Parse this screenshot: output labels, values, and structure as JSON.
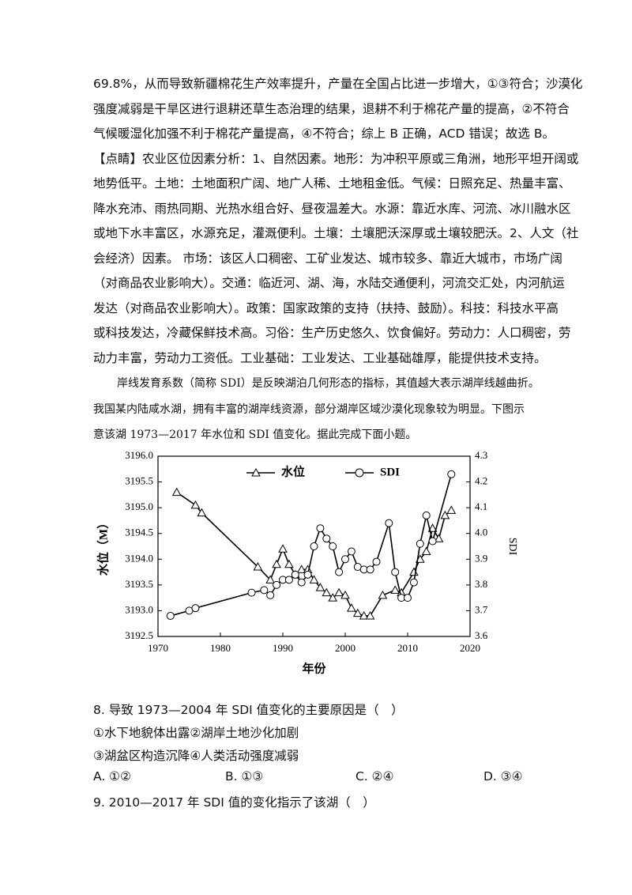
{
  "document": {
    "answer_lines": [
      "69.8%，从而导致新疆棉花生产效率提升，产量在全国占比进一步增大，①③符合；沙漠化",
      "强度减弱是干旱区进行退耕还草生态治理的结果，退耕不利于棉花产量的提高，②不符合",
      "气候暖湿化加强不利于棉花产量提高，④不符合；综上 B 正确，ACD 错误；故选 B。",
      "【点睛】农业区位因素分析：1、自然因素。地形：为冲积平原或三角洲，地形平坦开阔或",
      "地势低平。土地：土地面积广阔、地广人稀、土地租金低。气候：日照充足、热量丰富、",
      "降水充沛、雨热同期、光热水组合好、昼夜温差大。水源：靠近水库、河流、冰川融水区",
      "或地下水丰富区，水源充足，灌溉便利。土壤：土壤肥沃深厚或土壤较肥沃。2、人文（社",
      "会经济）因素。 市场：该区人口稠密、工矿业发达、城市较多、靠近大城市，市场广阔",
      "（对商品农业影响大）。交通：临近河、湖、海，水陆交通便利，河流交汇处，内河航运",
      "发达（对商品农业影响大）。政策：国家政策的支持（扶持、鼓励）。科技：科技水平高",
      "或科技发达，冷藏保鲜技术高。习俗：生产历史悠久、饮食偏好。劳动力：人口稠密，劳",
      "动力丰富，劳动力工资低。工业基础：工业发达、工业基础雄厚，能提供技术支持。"
    ],
    "intro_lines": [
      "岸线发育系数（简称 SDI）是反映湖泊几何形态的指标，其值越大表示湖岸线越曲折。",
      "我国某内陆咸水湖，拥有丰富的湖岸线资源，部分湖岸区域沙漠化现象较为明显。下图示",
      "意该湖 1973—2017 年水位和 SDI 值变化。据此完成下面小题。"
    ],
    "questions": [
      {
        "stem": "8. 导致 1973—2004 年 SDI 值变化的主要原因是（　）",
        "statements": [
          "①水下地貌体出露②湖岸土地沙化加剧",
          "③湖盆区构造沉降④人类活动强度减弱"
        ],
        "options": [
          "A. ①②",
          "B. ①③",
          "C. ②④",
          "D. ③④"
        ]
      },
      {
        "stem": "9. 2010—2017 年 SDI 值的变化指示了该湖（　）"
      }
    ]
  },
  "chart_data": {
    "type": "line",
    "xlabel": "年份",
    "ylabel": "水位（M）",
    "y2label": "SDI",
    "xlim": [
      1970,
      2020
    ],
    "xticks": [
      1970,
      1980,
      1990,
      2000,
      2010,
      2020
    ],
    "ylim": [
      3192.5,
      3196.0
    ],
    "yticks": [
      3192.5,
      {
        "value": 3193,
        "label": "3193.0"
      },
      3193.5,
      {
        "value": 3194,
        "label": "3194.0"
      },
      3194.5,
      {
        "value": 3195,
        "label": "3195.0"
      },
      3195.5,
      {
        "value": 3196,
        "label": "3196.0"
      }
    ],
    "y2lim": [
      3.6,
      4.3
    ],
    "y2ticks": [
      3.6,
      3.7,
      3.8,
      3.9,
      {
        "value": 4,
        "label": "4.0"
      },
      4.1,
      4.2,
      4.3
    ],
    "series": [
      {
        "name": "水位",
        "color": "#000000",
        "marker": "triangle",
        "x": [
          1973,
          1976,
          1977,
          1986,
          1988,
          1989,
          1990,
          1991,
          1992,
          1993,
          1994,
          1995,
          1996,
          1997,
          1998,
          1999,
          2000,
          2001,
          2002,
          2003,
          2004,
          2006,
          2008,
          2009,
          2011,
          2012,
          2013,
          2014,
          2015,
          2016,
          2017
        ],
        "values": [
          3195.3,
          3195.05,
          3194.9,
          3193.85,
          3193.6,
          3193.9,
          3194.2,
          3193.9,
          3193.7,
          3193.8,
          3193.8,
          3193.6,
          3193.45,
          3193.35,
          3193.25,
          3193.35,
          3193.3,
          3193.05,
          3192.95,
          3192.9,
          3192.9,
          3193.3,
          3193.4,
          3193.35,
          3193.75,
          3194.0,
          3194.15,
          3194.6,
          3194.4,
          3194.85,
          3194.95
        ]
      },
      {
        "name": "SDI",
        "color": "#000000",
        "marker": "circle",
        "axis": "y2",
        "x": [
          1972,
          1975,
          1976,
          1985,
          1987,
          1988,
          1989,
          1990,
          1991,
          1992,
          1993,
          1994,
          1995,
          1996,
          1997,
          1998,
          1999,
          2000,
          2001,
          2002,
          2003,
          2004,
          2005,
          2007,
          2008,
          2009,
          2010,
          2011,
          2012,
          2013,
          2014,
          2017
        ],
        "values": [
          3.68,
          3.7,
          3.71,
          3.77,
          3.78,
          3.76,
          3.8,
          3.82,
          3.82,
          3.84,
          3.81,
          3.84,
          3.95,
          4.02,
          3.98,
          3.95,
          3.85,
          3.9,
          3.93,
          3.87,
          3.86,
          3.86,
          3.89,
          4.04,
          3.85,
          3.75,
          3.75,
          3.81,
          3.96,
          4.07,
          3.97,
          4.23
        ]
      }
    ]
  }
}
